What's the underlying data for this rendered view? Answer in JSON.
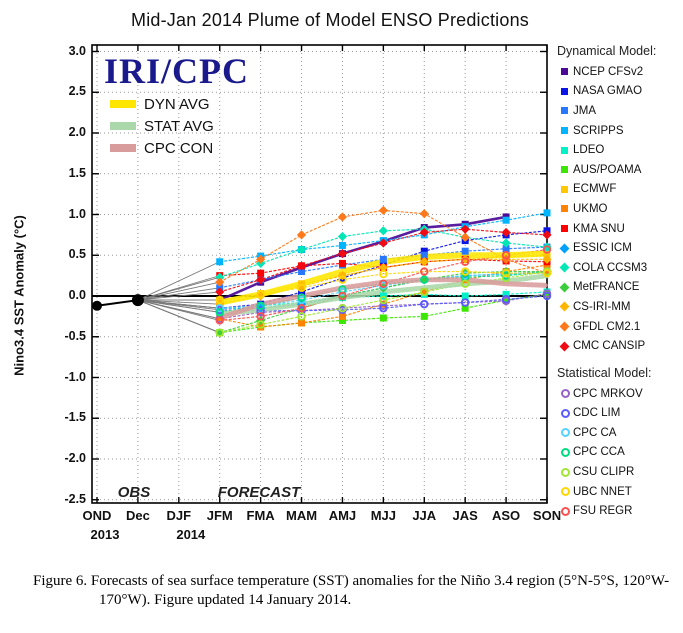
{
  "title": "Mid-Jan 2014 Plume of Model ENSO Predictions",
  "watermark": "IRI/CPC",
  "ylabel": "Nino3.4 SST Anomaly (°C)",
  "obs_label": "OBS",
  "forecast_label": "FORECAST",
  "legend": {
    "dynamical_header": "Dynamical Model:",
    "statistical_header": "Statistical Model:"
  },
  "caption": {
    "line1": "Figure 6. Forecasts of sea surface temperature (SST) anomalies for the Niño 3.4 region (5°N-5°S, 120°W-",
    "line2": "170°W).  Figure updated 14 January 2014."
  },
  "chart_data": {
    "type": "line",
    "title": "Mid-Jan 2014 Plume of Model ENSO Predictions",
    "xlabel": "",
    "ylabel": "Nino3.4 SST Anomaly (°C)",
    "ylim": [
      -2.5,
      3.0
    ],
    "ytick_step": 0.5,
    "grid": "dotted",
    "legend_position": "right",
    "categories": [
      "OND",
      "Dec",
      "DJF",
      "JFM",
      "FMA",
      "MAM",
      "AMJ",
      "MJJ",
      "JJA",
      "JAS",
      "ASO",
      "SON"
    ],
    "year_labels": [
      {
        "text": "2013",
        "category_index": 0,
        "dx": 8
      },
      {
        "text": "2014",
        "category_index": 2,
        "dx": 12
      }
    ],
    "observed": {
      "name": "OBS",
      "color": "#000000",
      "categories": [
        "OND",
        "Dec"
      ],
      "values": [
        -0.12,
        -0.05
      ]
    },
    "forecast_start_index": 3,
    "forecast_categories": [
      "JFM",
      "FMA",
      "MAM",
      "AMJ",
      "MJJ",
      "JJA",
      "JAS",
      "ASO",
      "SON"
    ],
    "series": [
      {
        "name": "NCEP CFSv2",
        "group": "dynamical",
        "marker": "square",
        "color": "#4b0a96",
        "width": 2.6,
        "dash": "",
        "values": [
          -0.05,
          0.17,
          0.35,
          0.52,
          0.67,
          0.84,
          0.88,
          0.97,
          null
        ]
      },
      {
        "name": "NASA GMAO",
        "group": "dynamical",
        "marker": "square",
        "color": "#0a14e6",
        "width": 1.2,
        "dash": "3,1.5",
        "values": [
          -0.15,
          -0.1,
          0.05,
          0.22,
          0.38,
          0.55,
          0.68,
          0.75,
          0.8
        ]
      },
      {
        "name": "JMA",
        "group": "dynamical",
        "marker": "square",
        "color": "#2878ff",
        "width": 1.2,
        "dash": "3,1.5",
        "values": [
          0.1,
          0.2,
          0.3,
          0.38,
          0.45,
          0.5,
          0.55,
          0.58,
          0.6
        ]
      },
      {
        "name": "SCRIPPS",
        "group": "dynamical",
        "marker": "square",
        "color": "#00b4ff",
        "width": 1.2,
        "dash": "3,1.5",
        "values": [
          0.42,
          0.49,
          0.57,
          0.62,
          0.68,
          0.75,
          0.85,
          0.93,
          1.02
        ]
      },
      {
        "name": "LDEO",
        "group": "dynamical",
        "marker": "square",
        "color": "#00f0c8",
        "width": 1.2,
        "dash": "3,1.5",
        "values": [
          -0.2,
          -0.12,
          -0.08,
          -0.02,
          0.0,
          0.02,
          0.0,
          0.02,
          0.05
        ]
      },
      {
        "name": "AUS/POAMA",
        "group": "dynamical",
        "marker": "square",
        "color": "#3ce600",
        "width": 1.2,
        "dash": "3,1.5",
        "values": [
          -0.45,
          -0.38,
          -0.33,
          -0.3,
          -0.27,
          -0.25,
          -0.15,
          -0.05,
          0.02
        ]
      },
      {
        "name": "ECMWF",
        "group": "dynamical",
        "marker": "square",
        "color": "#ffc800",
        "width": 1.2,
        "dash": "3,1.5",
        "values": [
          -0.05,
          0.03,
          0.15,
          0.25,
          0.35,
          0.42,
          0.45,
          0.48,
          0.5
        ]
      },
      {
        "name": "UKMO",
        "group": "dynamical",
        "marker": "square",
        "color": "#ff8200",
        "width": 1.2,
        "dash": "3,1.5",
        "values": [
          -0.28,
          -0.38,
          -0.33,
          -0.25,
          -0.1,
          0.05,
          0.2,
          0.3,
          0.38
        ]
      },
      {
        "name": "KMA SNU",
        "group": "dynamical",
        "marker": "square",
        "color": "#ff0000",
        "width": 1.2,
        "dash": "3,1.5",
        "values": [
          0.25,
          0.28,
          0.37,
          0.4,
          0.35,
          0.42,
          0.45,
          0.43,
          0.42
        ]
      },
      {
        "name": "ESSIC ICM",
        "group": "dynamical",
        "marker": "diamond",
        "color": "#00a0ff",
        "width": 1.2,
        "dash": "3,1.5",
        "values": [
          -0.15,
          -0.15,
          -0.1,
          0.0,
          0.1,
          0.2,
          0.25,
          0.27,
          0.3
        ]
      },
      {
        "name": "COLA CCSM3",
        "group": "dynamical",
        "marker": "diamond",
        "color": "#00e6b4",
        "width": 1.2,
        "dash": "3,1.5",
        "values": [
          0.23,
          0.4,
          0.57,
          0.73,
          0.8,
          0.82,
          0.72,
          0.65,
          0.6
        ]
      },
      {
        "name": "MetFRANCE",
        "group": "dynamical",
        "marker": "diamond",
        "color": "#3ccd3c",
        "width": 1.2,
        "dash": "3,1.5",
        "values": [
          -0.45,
          -0.3,
          -0.15,
          0.0,
          0.1,
          0.2,
          0.28,
          0.3,
          0.3
        ]
      },
      {
        "name": "CS-IRI-MM",
        "group": "dynamical",
        "marker": "diamond",
        "color": "#ffb400",
        "width": 1.2,
        "dash": "3,1.5",
        "values": [
          -0.1,
          0.0,
          0.12,
          0.25,
          0.35,
          0.42,
          0.45,
          0.45,
          0.45
        ]
      },
      {
        "name": "GFDL CM2.1",
        "group": "dynamical",
        "marker": "diamond",
        "color": "#ff7819",
        "width": 1.2,
        "dash": "3,1.5",
        "values": [
          0.17,
          0.45,
          0.75,
          0.97,
          1.05,
          1.01,
          0.72,
          0.45,
          0.28
        ]
      },
      {
        "name": "CMC CANSIP",
        "group": "dynamical",
        "marker": "diamond",
        "color": "#f00a14",
        "width": 1.2,
        "dash": "3,1.5",
        "values": [
          0.05,
          0.2,
          0.37,
          0.52,
          0.65,
          0.78,
          0.82,
          0.78,
          0.75
        ]
      },
      {
        "name": "CPC MRKOV",
        "group": "statistical",
        "marker": "circle",
        "color": "#9664c8",
        "width": 1.2,
        "dash": "3,1.5",
        "values": [
          -0.28,
          -0.2,
          -0.18,
          -0.15,
          -0.12,
          -0.1,
          -0.08,
          -0.06,
          0.03
        ]
      },
      {
        "name": "CDC LIM",
        "group": "statistical",
        "marker": "circle",
        "color": "#5a5aff",
        "width": 1.2,
        "dash": "3,1.5",
        "values": [
          -0.17,
          -0.18,
          -0.18,
          -0.17,
          -0.15,
          -0.1,
          -0.08,
          -0.04,
          0.0
        ]
      },
      {
        "name": "CPC CA",
        "group": "statistical",
        "marker": "circle",
        "color": "#55d2ff",
        "width": 1.2,
        "dash": "3,1.5",
        "values": [
          -0.15,
          -0.12,
          -0.05,
          0.05,
          0.13,
          0.2,
          0.25,
          0.27,
          0.28
        ]
      },
      {
        "name": "CPC CCA",
        "group": "statistical",
        "marker": "circle",
        "color": "#00dc82",
        "width": 1.2,
        "dash": "3,1.5",
        "values": [
          -0.2,
          -0.12,
          -0.02,
          0.08,
          0.15,
          0.2,
          0.23,
          0.25,
          0.3
        ]
      },
      {
        "name": "CSU CLIPR",
        "group": "statistical",
        "marker": "circle",
        "color": "#a0e632",
        "width": 1.2,
        "dash": "3,1.5",
        "values": [
          -0.45,
          -0.35,
          -0.25,
          -0.15,
          -0.05,
          0.05,
          0.15,
          0.22,
          0.3
        ]
      },
      {
        "name": "UBC NNET",
        "group": "statistical",
        "marker": "circle",
        "color": "#ffd700",
        "width": 1.2,
        "dash": "3,1.5",
        "values": [
          -0.05,
          0.02,
          0.1,
          0.2,
          0.27,
          0.3,
          0.3,
          0.28,
          0.28
        ]
      },
      {
        "name": "FSU REGR",
        "group": "statistical",
        "marker": "circle",
        "color": "#ff5050",
        "width": 1.2,
        "dash": "3,1.5",
        "values": [
          -0.3,
          -0.25,
          -0.15,
          0.0,
          0.15,
          0.3,
          0.42,
          0.5,
          0.57
        ]
      }
    ],
    "averages": [
      {
        "name": "DYN AVG",
        "color": "#ffe600",
        "width": 6,
        "dash": "",
        "values": [
          -0.08,
          0.02,
          0.15,
          0.3,
          0.42,
          0.48,
          0.5,
          0.5,
          0.52
        ]
      },
      {
        "name": "STAT AVG",
        "color": "#aad8aa",
        "width": 5,
        "dash": "2,2",
        "values": [
          -0.22,
          -0.17,
          -0.1,
          -0.02,
          0.05,
          0.1,
          0.15,
          0.18,
          0.25
        ]
      },
      {
        "name": "CPC CON",
        "color": "#d99c9c",
        "width": 5,
        "dash": "2,2",
        "values": [
          -0.27,
          -0.1,
          0.0,
          0.1,
          0.17,
          0.2,
          0.2,
          0.15,
          0.13
        ]
      }
    ]
  }
}
